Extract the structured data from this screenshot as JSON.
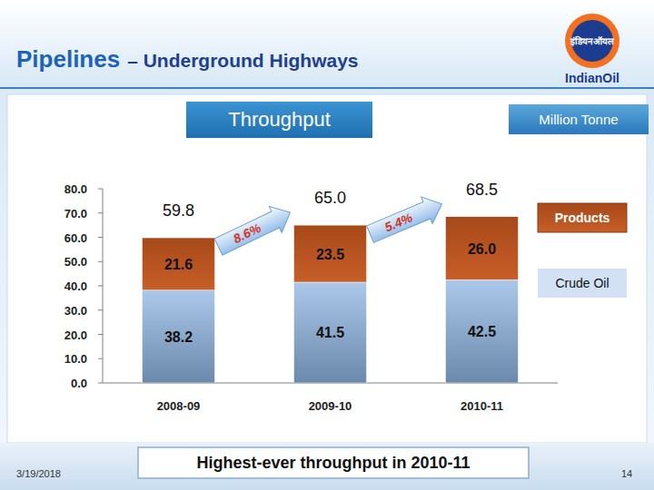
{
  "slide": {
    "heading": "Pipelines",
    "heading_rest": "– Underground Highways",
    "footer": "Highest-ever throughput in 2010-11",
    "date": "3/19/2018",
    "page": "14",
    "logo_hindi": "इंडियनऑयल",
    "logo_text": "IndianOil"
  },
  "chart_data": {
    "type": "bar",
    "stacked": true,
    "title": "Throughput",
    "ylabel": "Million Tonne",
    "categories": [
      "2008-09",
      "2009-10",
      "2010-11"
    ],
    "series": [
      {
        "name": "Crude Oil",
        "color": "#8fb6e3",
        "values": [
          38.2,
          41.5,
          42.5
        ]
      },
      {
        "name": "Products",
        "color": "#c4561d",
        "values": [
          21.6,
          23.5,
          26.0
        ],
        "value_labels": [
          "21.6",
          "23.5",
          "26.0"
        ]
      }
    ],
    "totals": [
      59.8,
      65.0,
      68.5
    ],
    "total_labels": [
      "59.8",
      "65.0",
      "68.5"
    ],
    "growth": [
      8.6,
      5.4
    ],
    "growth_labels": [
      "8.6%",
      "5.4%"
    ],
    "ylim": [
      0,
      80
    ],
    "yticks": [
      {
        "value": 0,
        "label": "0.0"
      },
      {
        "value": 10,
        "label": "10.0"
      },
      {
        "value": 20,
        "label": "20.0"
      },
      {
        "value": 30,
        "label": "30.0"
      },
      {
        "value": 40,
        "label": "40.0"
      },
      {
        "value": 50,
        "label": "50.0"
      },
      {
        "value": 60,
        "label": "60.0"
      },
      {
        "value": 70,
        "label": "70.0"
      },
      {
        "value": 80,
        "label": "80.0"
      }
    ],
    "grid": false,
    "data_labels": true,
    "legend": "right"
  }
}
